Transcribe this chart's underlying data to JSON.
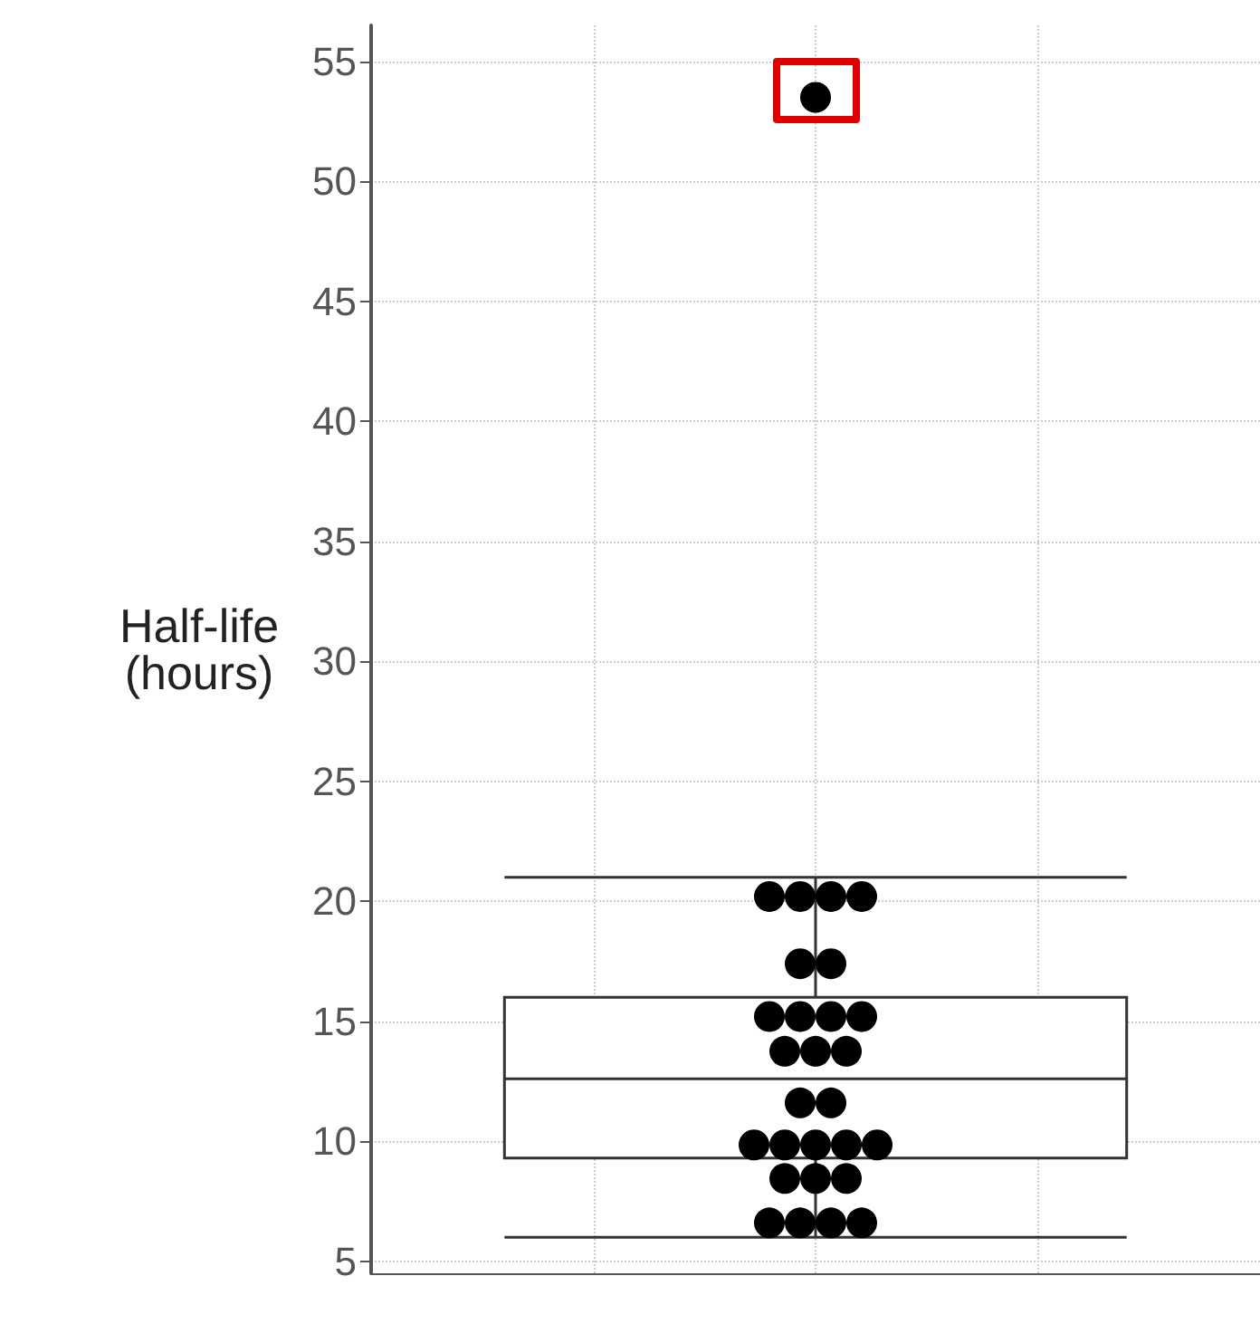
{
  "chart_data": {
    "type": "box",
    "ylabel": "Half-life\n(hours)",
    "categories": [
      null
    ],
    "boxes": [
      {
        "low": 6.0,
        "q1": 9.3,
        "median": 12.6,
        "q3": 16.0,
        "high": 21.0
      }
    ],
    "series": [
      {
        "type": "scatter",
        "color": "#000000",
        "x": [
          null,
          null,
          null,
          null,
          null,
          null,
          null,
          null,
          null,
          null,
          null,
          null,
          null,
          null,
          null,
          null,
          null,
          null,
          null,
          null,
          null,
          null,
          null,
          null,
          null,
          null,
          null,
          null
        ],
        "values": [
          53.5,
          20.2,
          20.2,
          20.2,
          20.2,
          17.4,
          17.4,
          15.2,
          15.2,
          15.2,
          15.2,
          13.75,
          13.75,
          13.75,
          11.6,
          11.6,
          9.85,
          9.85,
          9.85,
          9.85,
          9.85,
          8.45,
          8.45,
          8.45,
          6.6,
          6.6,
          6.6,
          6.6
        ]
      }
    ],
    "ylim": [
      4.5,
      56.5
    ],
    "yticks": [
      5,
      10,
      15,
      20,
      25,
      30,
      35,
      40,
      45,
      50,
      55
    ],
    "grid": true,
    "marker": "circle"
  }
}
